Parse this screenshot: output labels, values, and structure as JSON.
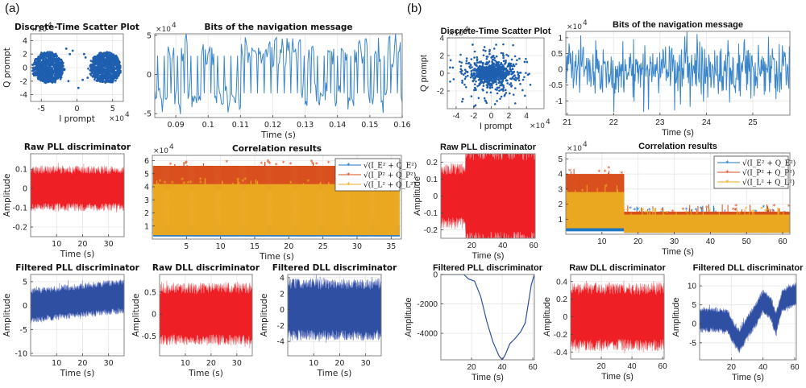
{
  "panels": {
    "a_label": "(a)",
    "b_label": "(b)"
  },
  "colors": {
    "scatter_blue": "#1f5fb0",
    "nav_blue": "#3a86c8",
    "raw_red": "#ee2026",
    "filtered_blue": "#2f4fa2",
    "corr_E": "#1f77c4",
    "corr_P": "#d9501e",
    "corr_L": "#eaa821",
    "grid": "#e6e6e6",
    "axis": "#777777"
  },
  "chart_data": [
    {
      "id": "a-scatter",
      "type": "scatter",
      "panel": "a",
      "title": "Discrete-Time Scatter Plot",
      "xlabel": "I prompt",
      "ylabel": "Q prompt",
      "x_exponent": "×10^4",
      "y_exponent": "×10^4",
      "xlim": [
        -6.5,
        6.5
      ],
      "ylim": [
        -5,
        5
      ],
      "xticks": [
        -5,
        0,
        5
      ],
      "yticks": [
        -4,
        -2,
        0,
        2,
        4
      ],
      "clusters": [
        {
          "center": [
            -4,
            0
          ],
          "radius": [
            2.2,
            2.4
          ]
        },
        {
          "center": [
            4,
            0
          ],
          "radius": [
            2.2,
            2.4
          ]
        }
      ],
      "grid": true
    },
    {
      "id": "a-nav",
      "type": "line",
      "panel": "a",
      "title": "Bits of the navigation message",
      "xlabel": "Time (s)",
      "ylabel": "",
      "y_exponent": "×10^4",
      "xlim": [
        0.0835,
        0.16
      ],
      "ylim": [
        -5.5,
        5.2
      ],
      "xticks": [
        0.09,
        0.1,
        0.11,
        0.12,
        0.13,
        0.14,
        0.15,
        0.16
      ],
      "xticklabels": [
        "0.09",
        "0.1",
        "0.11",
        "0.12",
        "0.13",
        "0.14",
        "0.15",
        "0.16"
      ],
      "yticks": [
        -5,
        0,
        5
      ],
      "amplitude": 4.0,
      "grid": true
    },
    {
      "id": "a-rawpll",
      "type": "line",
      "panel": "a",
      "title": "Raw PLL discriminator",
      "xlabel": "Time (s)",
      "ylabel": "Amplitude",
      "xlim": [
        0,
        36
      ],
      "ylim": [
        -0.25,
        0.18
      ],
      "xticks": [
        10,
        20,
        30
      ],
      "yticks": [
        -0.2,
        -0.1,
        0,
        0.1
      ],
      "yticklabels": [
        "-0.2",
        "-0.1",
        "0",
        "0.1"
      ],
      "envelope": [
        -0.09,
        0.09
      ],
      "grid": true
    },
    {
      "id": "a-corr",
      "type": "scatter",
      "panel": "a",
      "title": "Correlation results",
      "xlabel": "Time (s)",
      "ylabel": "",
      "y_exponent": "×10^4",
      "xlim": [
        0,
        36.5
      ],
      "ylim": [
        0,
        6.4
      ],
      "xticks": [
        5,
        10,
        15,
        20,
        25,
        30,
        35
      ],
      "yticks": [
        1,
        2,
        3,
        4,
        5,
        6
      ],
      "series": [
        {
          "name": "sqrt(I_E^2 + Q_E^2)",
          "range": [
            0.2,
            1.0
          ]
        },
        {
          "name": "sqrt(I_P^2 + Q_P^2)",
          "range": [
            3.7,
            5.6
          ]
        },
        {
          "name": "sqrt(I_L^2 + Q_L^2)",
          "range": [
            0.3,
            4.2
          ]
        }
      ],
      "legend": [
        "√(I_E² + Q_E²)",
        "√(I_P² + Q_P²)",
        "√(I_L² + Q_L²)"
      ],
      "legend_position": "top-right",
      "grid": true
    },
    {
      "id": "a-filtpll",
      "type": "line",
      "panel": "a",
      "title": "Filtered PLL discriminator",
      "xlabel": "Time (s)",
      "ylabel": "Amplitude",
      "xlim": [
        0,
        36
      ],
      "ylim": [
        -10.5,
        6.5
      ],
      "xticks": [
        10,
        20,
        30
      ],
      "yticks": [
        -10,
        -5,
        0,
        5
      ],
      "trend": [
        [
          0,
          0
        ],
        [
          36,
          2
        ]
      ],
      "envelope_halfwidth": 2.8,
      "grid": true
    },
    {
      "id": "a-rawdll",
      "type": "line",
      "panel": "a",
      "title": "Raw DLL discriminator",
      "xlabel": "Time (s)",
      "ylabel": "Amplitude",
      "xlim": [
        0,
        36
      ],
      "ylim": [
        -0.95,
        0.9
      ],
      "xticks": [
        10,
        20,
        30
      ],
      "yticks": [
        -0.5,
        0,
        0.5
      ],
      "yticklabels": [
        "-0.5",
        "0",
        "0.5"
      ],
      "envelope": [
        -0.55,
        0.55
      ],
      "grid": true
    },
    {
      "id": "a-filtdll",
      "type": "line",
      "panel": "a",
      "title": "Filtered DLL discriminator",
      "xlabel": "Time (s)",
      "ylabel": "Amplitude",
      "xlim": [
        0,
        36
      ],
      "ylim": [
        -5.8,
        4.4
      ],
      "xticks": [
        10,
        20,
        30
      ],
      "yticks": [
        -4,
        -2,
        0,
        2,
        4
      ],
      "envelope": [
        -3,
        3
      ],
      "grid": true
    },
    {
      "id": "b-scatter",
      "type": "scatter",
      "panel": "b",
      "title": "Discrete-Time Scatter Plot",
      "xlabel": "I prompt",
      "ylabel": "Q prompt",
      "x_exponent": "×10^4",
      "y_exponent": "×10^4",
      "xlim": [
        -5,
        6
      ],
      "ylim": [
        -4,
        4
      ],
      "xticks": [
        -4,
        -2,
        0,
        2,
        4
      ],
      "yticks": [
        -2,
        0,
        2,
        4
      ],
      "clusters": [
        {
          "center": [
            0,
            0
          ],
          "radius": [
            3.2,
            2.2
          ]
        }
      ],
      "grid": true
    },
    {
      "id": "b-nav",
      "type": "line",
      "panel": "b",
      "title": "Bits of the navigation message",
      "xlabel": "Time (s)",
      "ylabel": "",
      "y_exponent": "×10^4",
      "xlim": [
        20.97,
        25.8
      ],
      "ylim": [
        -1.45,
        1.2
      ],
      "xticks": [
        21,
        22,
        23,
        24,
        25
      ],
      "yticks": [
        -1,
        -0.5,
        0,
        0.5,
        1
      ],
      "yticklabels": [
        "-1",
        "-0.5",
        "0",
        "0.5",
        "1"
      ],
      "amplitude": 0.6,
      "grid": true
    },
    {
      "id": "b-rawpll",
      "type": "line",
      "panel": "b",
      "title": "Raw PLL discriminator",
      "xlabel": "Time (s)",
      "ylabel": "Amplitude",
      "xlim": [
        0,
        61
      ],
      "ylim": [
        -0.25,
        0.25
      ],
      "xticks": [
        20,
        40,
        60
      ],
      "yticks": [
        -0.2,
        -0.1,
        0,
        0.1,
        0.2
      ],
      "yticklabels": [
        "-0.2",
        "-0.1",
        "0",
        "0.1",
        "0.2"
      ],
      "segments": [
        {
          "t": [
            0,
            16
          ],
          "envelope": [
            -0.15,
            0.15
          ]
        },
        {
          "t": [
            16,
            61
          ],
          "envelope": [
            -0.25,
            0.25
          ]
        }
      ],
      "grid": true
    },
    {
      "id": "b-corr",
      "type": "scatter",
      "panel": "b",
      "title": "Correlation results",
      "xlabel": "Time (s)",
      "ylabel": "",
      "y_exponent": "×10^4",
      "xlim": [
        0,
        62
      ],
      "ylim": [
        0,
        5.4
      ],
      "xticks": [
        10,
        20,
        30,
        40,
        50,
        60
      ],
      "yticks": [
        1,
        2,
        3,
        4,
        5
      ],
      "series": [
        {
          "name": "sqrt(I_E^2 + Q_E^2)",
          "before_16s": [
            0.2,
            2.2
          ],
          "after_16s": [
            0.1,
            1.4
          ]
        },
        {
          "name": "sqrt(I_P^2 + Q_P^2)",
          "before_16s": [
            2.0,
            4.0
          ],
          "after_16s": [
            0.2,
            1.5
          ]
        },
        {
          "name": "sqrt(I_L^2 + Q_L^2)",
          "before_16s": [
            0.4,
            2.8
          ],
          "after_16s": [
            0.1,
            1.3
          ]
        }
      ],
      "legend": [
        "√(I_E² + Q_E²)",
        "√(I_P² + Q_P²)",
        "√(I_L² + Q_L²)"
      ],
      "legend_position": "top-right",
      "grid": true
    },
    {
      "id": "b-filtpll",
      "type": "line",
      "panel": "b",
      "title": "Filtered PLL discriminator",
      "xlabel": "Time (s)",
      "ylabel": "Amplitude",
      "xlim": [
        0,
        61
      ],
      "ylim": [
        -5800,
        0
      ],
      "xticks": [
        20,
        40,
        60
      ],
      "yticks": [
        -4000,
        -2000,
        0
      ],
      "x": [
        0,
        5,
        10,
        15,
        18,
        22,
        26,
        30,
        34,
        38,
        40,
        42,
        45,
        48,
        52,
        55,
        57,
        59,
        61
      ],
      "values": [
        0,
        0,
        0,
        0,
        -300,
        -450,
        -1500,
        -3200,
        -4600,
        -5550,
        -5800,
        -5450,
        -4700,
        -4400,
        -3900,
        -3300,
        -2000,
        -700,
        0
      ],
      "grid": true
    },
    {
      "id": "b-rawdll",
      "type": "line",
      "panel": "b",
      "title": "Raw DLL discriminator",
      "xlabel": "Time (s)",
      "ylabel": "Amplitude",
      "xlim": [
        0,
        61
      ],
      "ylim": [
        -0.48,
        0.48
      ],
      "xticks": [
        20,
        40,
        60
      ],
      "yticks": [
        -0.4,
        -0.2,
        0,
        0.2,
        0.4
      ],
      "yticklabels": [
        "-0.4",
        "-0.2",
        "0",
        "0.2",
        "0.4"
      ],
      "envelope": [
        -0.3,
        0.3
      ],
      "grid": true
    },
    {
      "id": "b-filtdll",
      "type": "line",
      "panel": "b",
      "title": "Filtered DLL discriminator",
      "xlabel": "Time (s)",
      "ylabel": "Amplitude",
      "xlim": [
        0,
        61
      ],
      "ylim": [
        -9.5,
        13
      ],
      "xticks": [
        20,
        40,
        60
      ],
      "yticks": [
        -5,
        0,
        5,
        10
      ],
      "trend_x": [
        0,
        10,
        18,
        22,
        25,
        30,
        35,
        40,
        45,
        48,
        52,
        56,
        61
      ],
      "trend_y": [
        1,
        1,
        0.5,
        -3,
        -4.5,
        -1,
        2,
        6,
        4,
        0,
        6,
        7,
        8
      ],
      "envelope_halfwidth": 2.5,
      "grid": true
    }
  ]
}
